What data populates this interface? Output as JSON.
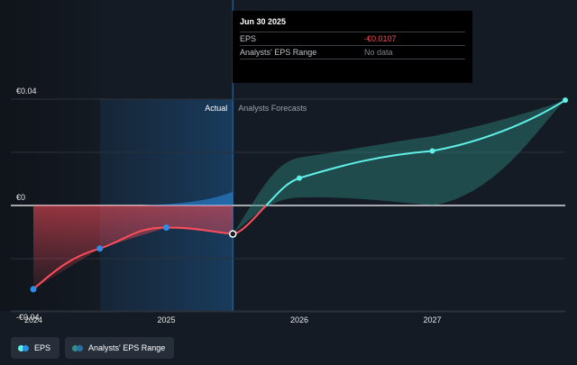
{
  "tooltip": {
    "title": "Jun 30 2025",
    "rows": [
      {
        "label": "EPS",
        "value": "-€0.0107"
      },
      {
        "label": "Analysts' EPS Range",
        "value": "No data"
      }
    ]
  },
  "legend": {
    "items": [
      {
        "label": "EPS",
        "colors": [
          "#5ff0e8",
          "#2c8ee8"
        ]
      },
      {
        "label": "Analysts' EPS Range",
        "colors": [
          "#5ff0e8",
          "#2c8ee8"
        ]
      }
    ]
  },
  "colors": {
    "background": "#151b24",
    "actual_shade": "#1f6fb8",
    "eps_negative": "#ff4d5b",
    "eps_forecast": "#5ff0e8",
    "range_fill": "#2f8f86",
    "zero_line": "#ffffff"
  },
  "chart_data": {
    "type": "line",
    "y_tick_labels": [
      "€0.04",
      "€0",
      "-€0.04"
    ],
    "y_ticks": [
      0.04,
      0,
      -0.04
    ],
    "x_tick_labels": [
      "2024",
      "2025",
      "2026",
      "2027"
    ],
    "x_ticks": [
      2024,
      2025,
      2026,
      2027
    ],
    "xlim": [
      2024,
      2028
    ],
    "ylim": [
      -0.04,
      0.04
    ],
    "section_labels": {
      "actual": "Actual",
      "forecast": "Analysts Forecasts"
    },
    "actual_end": 2025.5,
    "highlight_start": 2024.5,
    "series": [
      {
        "name": "EPS",
        "segment": "actual",
        "points": [
          {
            "x": 2024.0,
            "y": -0.0315,
            "marker": true
          },
          {
            "x": 2024.5,
            "y": -0.0162,
            "marker": true
          },
          {
            "x": 2025.0,
            "y": -0.0083,
            "marker": true
          },
          {
            "x": 2025.5,
            "y": -0.0107,
            "marker": true
          }
        ]
      },
      {
        "name": "EPS",
        "segment": "forecast",
        "points": [
          {
            "x": 2025.5,
            "y": -0.0107,
            "marker": false
          },
          {
            "x": 2025.75,
            "y": 0.0,
            "marker": false
          },
          {
            "x": 2026.0,
            "y": 0.0103,
            "marker": true
          },
          {
            "x": 2027.0,
            "y": 0.0205,
            "marker": true
          },
          {
            "x": 2028.0,
            "y": 0.0396,
            "marker": true
          }
        ]
      }
    ],
    "forecast_range": {
      "high": [
        {
          "x": 2025.5,
          "y": -0.0107
        },
        {
          "x": 2026.0,
          "y": 0.018
        },
        {
          "x": 2027.0,
          "y": 0.026
        },
        {
          "x": 2028.0,
          "y": 0.0396
        }
      ],
      "low": [
        {
          "x": 2025.5,
          "y": -0.0107
        },
        {
          "x": 2026.0,
          "y": 0.003
        },
        {
          "x": 2027.0,
          "y": 0.0
        },
        {
          "x": 2028.0,
          "y": 0.0396
        }
      ]
    }
  }
}
